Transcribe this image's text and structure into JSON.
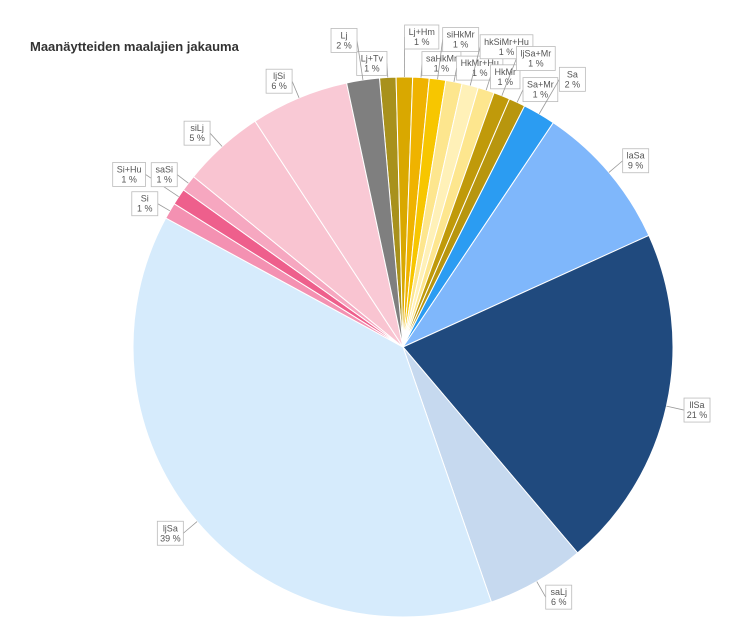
{
  "chart_data": {
    "type": "pie",
    "title": "Maanäytteiden maalajien jakauma",
    "categories": [
      "Lj+Tv",
      "Lj+Hm",
      "saHkMr",
      "siHkMr",
      "HkMr+Hu",
      "hkSiMr+Hu",
      "HkMr",
      "ljSa+Mr",
      "Sa+Mr",
      "Sa",
      "laSa",
      "llSa",
      "saLj",
      "ljSa",
      "Si",
      "Si+Hu",
      "saSi",
      "siLj",
      "ljSi",
      "Lj"
    ],
    "values": [
      1,
      1,
      1,
      1,
      1,
      1,
      1,
      1,
      1,
      2,
      9,
      21,
      6,
      39,
      1,
      1,
      1,
      5,
      6,
      2
    ],
    "value_labels": [
      "1 %",
      "1 %",
      "1 %",
      "1 %",
      "1 %",
      "1 %",
      "1 %",
      "1 %",
      "1 %",
      "2 %",
      "9 %",
      "21 %",
      "6 %",
      "39 %",
      "1 %",
      "1 %",
      "1 %",
      "5 %",
      "6 %",
      "2 %"
    ],
    "colors": [
      "#a8911c",
      "#d9a800",
      "#efb300",
      "#f7c600",
      "#fde68e",
      "#fff1b8",
      "#fde68e",
      "#c09a0a",
      "#b8960e",
      "#2b9cf2",
      "#7fb7fb",
      "#204a7e",
      "#c6d9ef",
      "#d6ebfc",
      "#f491b2",
      "#ee5f8c",
      "#f6a7c0",
      "#f9c4d1",
      "#f9c9d5",
      "#7f7f7f"
    ]
  }
}
